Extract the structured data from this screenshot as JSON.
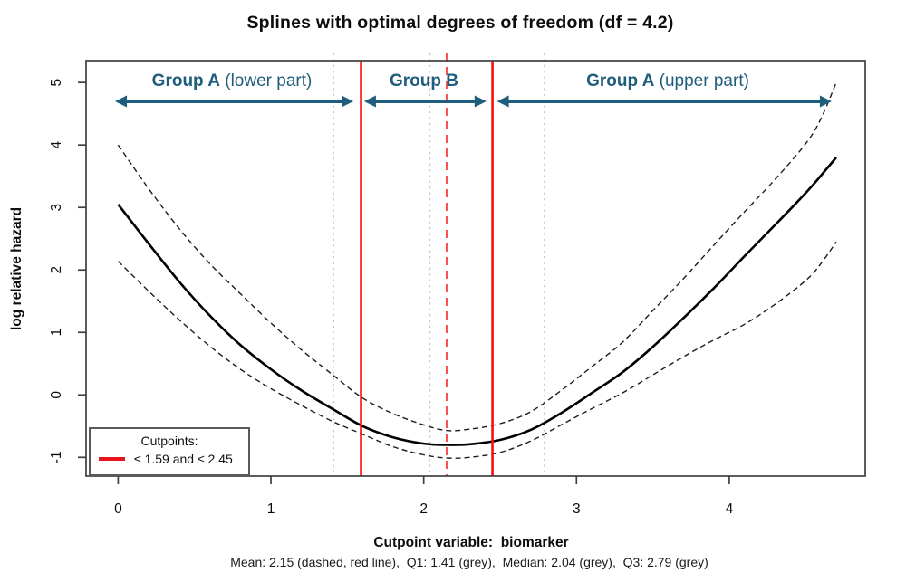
{
  "chart_data": {
    "type": "line",
    "title": "Splines with optimal degrees of freedom (df = 4.2)",
    "xlabel": "Cutpoint variable:  biomarker",
    "xlabel_note": "Mean: 2.15 (dashed, red line),  Q1: 1.41 (grey),  Median: 2.04 (grey),  Q3: 2.79 (grey)",
    "ylabel": "log relative hazard",
    "xlim": [
      -0.21,
      4.89
    ],
    "ylim": [
      -1.3,
      5.35
    ],
    "x_ticks": [
      0,
      1,
      2,
      3,
      4
    ],
    "y_ticks": [
      -1,
      0,
      1,
      2,
      3,
      4,
      5
    ],
    "grid": false,
    "legend_position": "bottom-left",
    "series": [
      {
        "name": "spline-estimate",
        "style": "solid",
        "color": "#000000",
        "width": 2.6,
        "x": [
          0,
          0.2,
          0.4,
          0.6,
          0.8,
          1.0,
          1.2,
          1.4,
          1.6,
          1.8,
          2.0,
          2.15,
          2.3,
          2.5,
          2.7,
          2.9,
          3.1,
          3.3,
          3.5,
          3.7,
          3.9,
          4.1,
          4.3,
          4.5,
          4.6,
          4.7
        ],
        "y": [
          3.05,
          2.42,
          1.81,
          1.27,
          0.8,
          0.41,
          0.07,
          -0.22,
          -0.5,
          -0.68,
          -0.78,
          -0.8,
          -0.79,
          -0.72,
          -0.56,
          -0.29,
          0.03,
          0.36,
          0.77,
          1.23,
          1.71,
          2.22,
          2.72,
          3.23,
          3.51,
          3.8
        ]
      },
      {
        "name": "ci-upper",
        "style": "dashed",
        "color": "#1c1c1c",
        "width": 1.4,
        "x": [
          0,
          0.2,
          0.4,
          0.6,
          0.8,
          1.0,
          1.2,
          1.4,
          1.6,
          1.8,
          2.0,
          2.15,
          2.3,
          2.5,
          2.7,
          2.9,
          3.1,
          3.3,
          3.5,
          3.7,
          3.9,
          4.1,
          4.3,
          4.5,
          4.6,
          4.7
        ],
        "y": [
          4.0,
          3.3,
          2.66,
          2.1,
          1.62,
          1.15,
          0.72,
          0.33,
          -0.05,
          -0.3,
          -0.48,
          -0.57,
          -0.55,
          -0.46,
          -0.27,
          0.07,
          0.45,
          0.84,
          1.35,
          1.86,
          2.4,
          2.93,
          3.45,
          4.02,
          4.42,
          5.0
        ]
      },
      {
        "name": "ci-lower",
        "style": "dashed",
        "color": "#1c1c1c",
        "width": 1.4,
        "x": [
          0,
          0.2,
          0.4,
          0.6,
          0.8,
          1.0,
          1.2,
          1.4,
          1.6,
          1.8,
          2.0,
          2.15,
          2.3,
          2.5,
          2.7,
          2.9,
          3.1,
          3.3,
          3.5,
          3.7,
          3.9,
          4.1,
          4.3,
          4.5,
          4.6,
          4.7
        ],
        "y": [
          2.14,
          1.66,
          1.2,
          0.78,
          0.41,
          0.1,
          -0.17,
          -0.42,
          -0.63,
          -0.83,
          -0.96,
          -1.01,
          -1.0,
          -0.92,
          -0.74,
          -0.48,
          -0.22,
          0.03,
          0.32,
          0.61,
          0.88,
          1.13,
          1.45,
          1.83,
          2.1,
          2.45
        ]
      }
    ],
    "vlines": [
      {
        "name": "cutpoint-1",
        "x": 1.59,
        "style": "solid",
        "color": "#fc0d0d",
        "width": 2.6
      },
      {
        "name": "cutpoint-2",
        "x": 2.45,
        "style": "solid",
        "color": "#fc0d0d",
        "width": 2.6
      },
      {
        "name": "mean",
        "x": 2.15,
        "style": "dashed",
        "color": "#f85050",
        "width": 2.0
      },
      {
        "name": "q1",
        "x": 1.41,
        "style": "dotted",
        "color": "#c6c6c6",
        "width": 1.6
      },
      {
        "name": "median",
        "x": 2.04,
        "style": "dotted",
        "color": "#c6c6c6",
        "width": 1.6
      },
      {
        "name": "q3",
        "x": 2.79,
        "style": "dotted",
        "color": "#c6c6c6",
        "width": 1.6
      }
    ],
    "groups": [
      {
        "bold": "Group A",
        "rest": " (lower part)",
        "arrow": [
          -0.02,
          1.54
        ]
      },
      {
        "bold": "Group B",
        "rest": "",
        "arrow": [
          1.61,
          2.41
        ]
      },
      {
        "bold": "Group A",
        "rest": " (upper part)",
        "arrow": [
          2.48,
          4.67
        ]
      }
    ],
    "legend": {
      "title": "Cutpoints:",
      "entry": "≤ 1.59 and ≤ 2.45",
      "line_color": "#e8141c"
    },
    "colors": {
      "annotation_blue": "#1F5D7C",
      "cutpoint_red": "#fc0d0d",
      "mean_red": "#f85050",
      "quantile_grey": "#c6c6c6",
      "axis": "#3f3f3f"
    },
    "stats": {
      "df": 4.2,
      "mean": 2.15,
      "q1": 1.41,
      "median": 2.04,
      "q3": 2.79,
      "cutpoints": [
        1.59,
        2.45
      ]
    }
  }
}
